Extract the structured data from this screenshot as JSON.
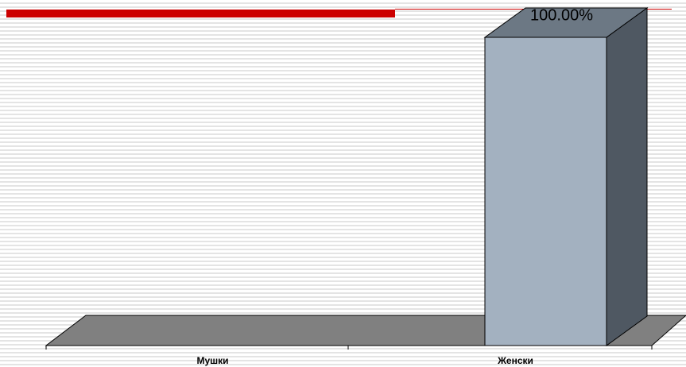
{
  "chart_data": {
    "type": "bar3d",
    "categories": [
      "Мушки",
      "Женски"
    ],
    "values": [
      0,
      100
    ],
    "value_labels": [
      null,
      "100.00%"
    ],
    "color": "#a3b1c0"
  }
}
